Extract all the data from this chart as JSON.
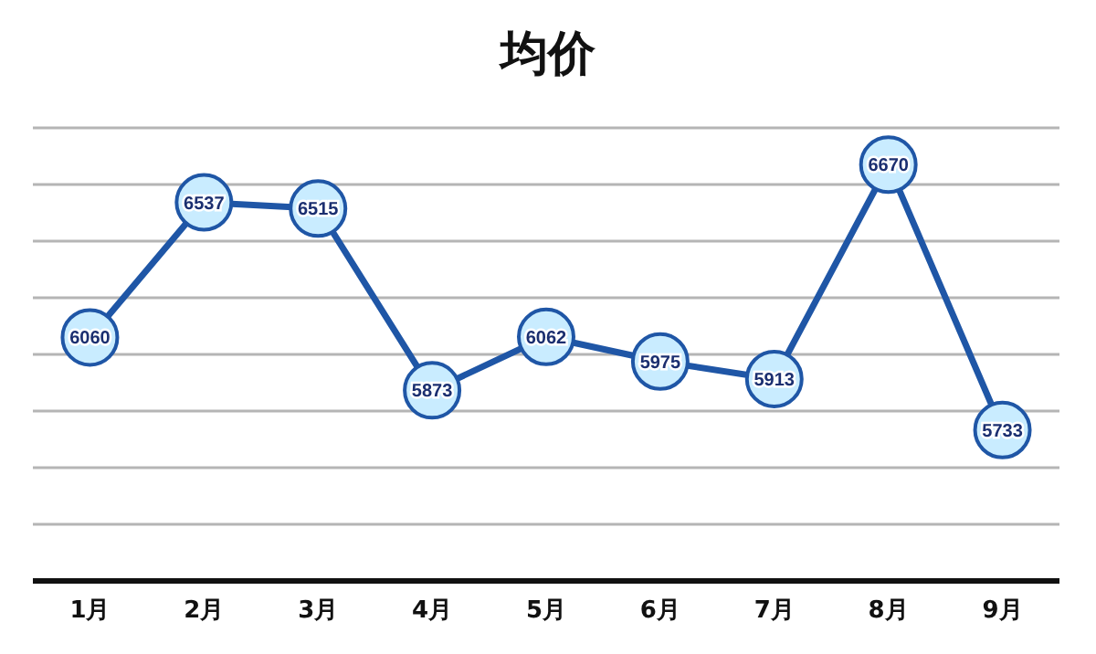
{
  "chart_data": {
    "type": "line",
    "title": "均价",
    "categories": [
      "1月",
      "2月",
      "3月",
      "4月",
      "5月",
      "6月",
      "7月",
      "8月",
      "9月"
    ],
    "series": [
      {
        "color": "#1f56a6",
        "values": [
          6060,
          6537,
          6515,
          5873,
          6062,
          5975,
          5913,
          6670,
          5733
        ]
      }
    ],
    "ylim": [
      5200,
      6800
    ],
    "yticks": [
      {
        "value": 5200,
        "label": null
      },
      {
        "value": 5400,
        "label": null
      },
      {
        "value": 5600,
        "label": null
      },
      {
        "value": 5800,
        "label": null
      },
      {
        "value": 6000,
        "label": null
      },
      {
        "value": 6200,
        "label": null
      },
      {
        "value": 6400,
        "label": null
      },
      {
        "value": 6600,
        "label": null
      },
      {
        "value": 6800,
        "label": null
      }
    ],
    "grid": "y",
    "tick_labels": "x",
    "marker": "circle",
    "line_style": "solid",
    "data_labels": true
  }
}
